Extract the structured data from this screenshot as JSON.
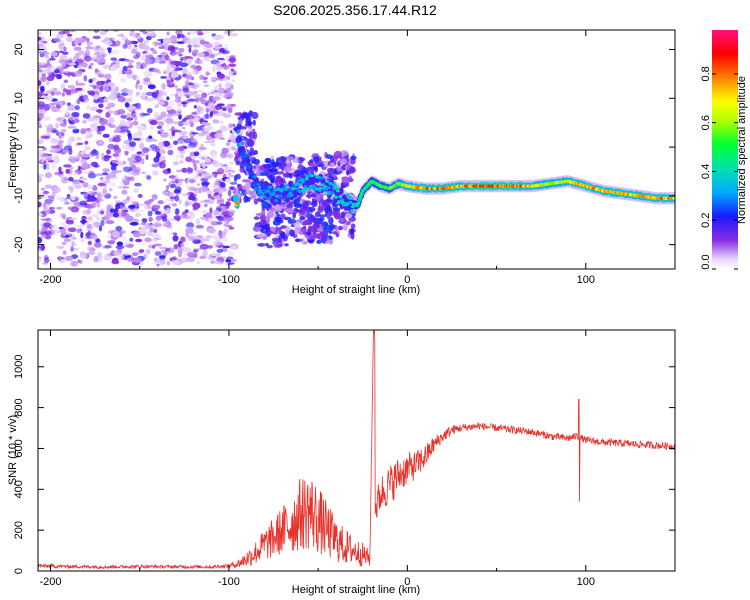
{
  "title": "S206.2025.356.17.44.R12",
  "chart_data": [
    {
      "type": "heatmap",
      "name": "spectrogram",
      "xlabel": "Height of straight line (km)",
      "ylabel": "Frequency (Hz)",
      "xlim": [
        -207,
        150
      ],
      "ylim": [
        -25,
        24
      ],
      "xticks": [
        -200,
        -100,
        0,
        100
      ],
      "yticks": [
        -20,
        -10,
        0,
        10,
        20
      ],
      "colorbar": {
        "label": "Normalized spectral amplitude",
        "range": [
          0,
          0.98
        ],
        "ticks": [
          0.0,
          0.2,
          0.4,
          0.6,
          0.8
        ]
      },
      "noise_region": {
        "x": [
          -207,
          -97
        ],
        "y": [
          -24,
          24
        ],
        "amplitude": [
          0.05,
          0.3
        ]
      },
      "transition_region": {
        "x": [
          -97,
          -30
        ],
        "y": [
          -20,
          5
        ],
        "amplitude": [
          0.1,
          0.45
        ]
      },
      "ridge": [
        {
          "x": -95,
          "y": 2,
          "a": 0.3
        },
        {
          "x": -90,
          "y": -3,
          "a": 0.3
        },
        {
          "x": -85,
          "y": -8,
          "a": 0.3
        },
        {
          "x": -75,
          "y": -10,
          "a": 0.35
        },
        {
          "x": -65,
          "y": -9,
          "a": 0.35
        },
        {
          "x": -55,
          "y": -7,
          "a": 0.4
        },
        {
          "x": -45,
          "y": -8,
          "a": 0.4
        },
        {
          "x": -35,
          "y": -11,
          "a": 0.4
        },
        {
          "x": -28,
          "y": -12,
          "a": 0.45
        },
        {
          "x": -25,
          "y": -9,
          "a": 0.5
        },
        {
          "x": -20,
          "y": -7,
          "a": 0.55
        },
        {
          "x": -15,
          "y": -8,
          "a": 0.6
        },
        {
          "x": -10,
          "y": -8.5,
          "a": 0.6
        },
        {
          "x": -5,
          "y": -7.5,
          "a": 0.65
        },
        {
          "x": 0,
          "y": -8,
          "a": 0.75
        },
        {
          "x": 10,
          "y": -8.5,
          "a": 0.85
        },
        {
          "x": 20,
          "y": -8.5,
          "a": 0.85
        },
        {
          "x": 30,
          "y": -8,
          "a": 0.82
        },
        {
          "x": 40,
          "y": -8,
          "a": 0.95
        },
        {
          "x": 50,
          "y": -8,
          "a": 0.9
        },
        {
          "x": 60,
          "y": -8,
          "a": 0.92
        },
        {
          "x": 70,
          "y": -8,
          "a": 0.78
        },
        {
          "x": 80,
          "y": -7.5,
          "a": 0.72
        },
        {
          "x": 90,
          "y": -7,
          "a": 0.75
        },
        {
          "x": 100,
          "y": -8,
          "a": 0.85
        },
        {
          "x": 110,
          "y": -9,
          "a": 0.8
        },
        {
          "x": 120,
          "y": -9.5,
          "a": 0.82
        },
        {
          "x": 130,
          "y": -10,
          "a": 0.8
        },
        {
          "x": 140,
          "y": -10.5,
          "a": 0.85
        },
        {
          "x": 150,
          "y": -10.5,
          "a": 0.85
        }
      ]
    },
    {
      "type": "line",
      "name": "snr",
      "xlabel": "Height of straight line (km)",
      "ylabel": "SNR (10 * v/v)",
      "xlim": [
        -207,
        150
      ],
      "ylim": [
        0,
        1180
      ],
      "xticks": [
        -200,
        -100,
        0,
        100
      ],
      "yticks": [
        0,
        200,
        400,
        600,
        800,
        1000
      ],
      "color": "#e8312a",
      "x": [
        -207,
        -190,
        -170,
        -150,
        -130,
        -110,
        -100,
        -95,
        -90,
        -85,
        -80,
        -75,
        -70,
        -65,
        -60,
        -55,
        -50,
        -45,
        -40,
        -35,
        -30,
        -25,
        -21,
        -19,
        -18,
        -15,
        -10,
        -5,
        0,
        5,
        10,
        15,
        20,
        25,
        30,
        40,
        50,
        60,
        70,
        80,
        90,
        95,
        100,
        110,
        120,
        130,
        140,
        150
      ],
      "y": [
        25,
        22,
        20,
        22,
        21,
        20,
        25,
        35,
        60,
        90,
        130,
        160,
        200,
        230,
        280,
        300,
        250,
        200,
        150,
        120,
        100,
        80,
        60,
        1180,
        300,
        380,
        420,
        470,
        500,
        520,
        560,
        620,
        660,
        690,
        700,
        710,
        700,
        690,
        680,
        660,
        650,
        660,
        640,
        630,
        625,
        620,
        615,
        610
      ],
      "noise_amp": [
        10,
        8,
        8,
        8,
        8,
        8,
        10,
        20,
        40,
        60,
        80,
        100,
        120,
        150,
        180,
        200,
        170,
        140,
        110,
        90,
        70,
        60,
        40,
        0,
        80,
        90,
        100,
        90,
        80,
        70,
        60,
        40,
        30,
        25,
        20,
        18,
        18,
        18,
        18,
        18,
        18,
        18,
        18,
        18,
        18,
        18,
        18,
        18
      ],
      "spikes": [
        {
          "x": -18.5,
          "y": 1180
        },
        {
          "x": 96,
          "y": 840
        },
        {
          "x": 96.5,
          "y": 340
        }
      ]
    }
  ]
}
